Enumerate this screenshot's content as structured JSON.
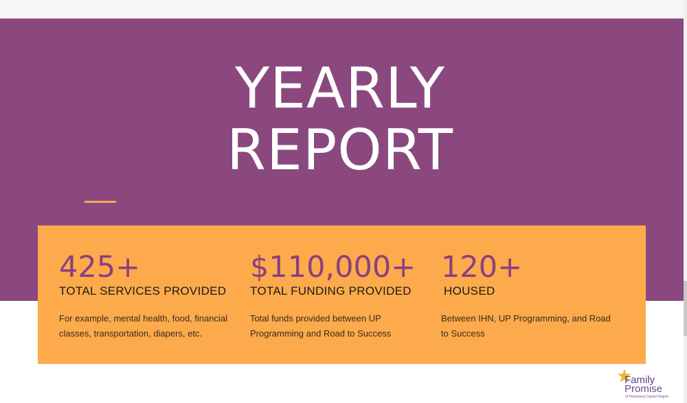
{
  "hero": {
    "title_line1": "YEARLY",
    "title_line2": "REPORT"
  },
  "stats": [
    {
      "number": "425+",
      "label": "TOTAL SERVICES PROVIDED",
      "description": "For example, mental health, food, financial classes, transportation, diapers, etc."
    },
    {
      "number": "$110,000+",
      "label": "TOTAL FUNDING PROVIDED",
      "description": "Total funds provided between UP Programming and Road to Success"
    },
    {
      "number": "120+",
      "label": "HOUSED",
      "description": "Between IHN, UP Programming, and Road to Success"
    }
  ],
  "logo": {
    "line1": "Family",
    "line2": "Promise",
    "tagline": "of Harrisburg Capital Region",
    "icon": "star-icon"
  },
  "colors": {
    "hero_background": "#8b487f",
    "card_background": "#fcaa4b",
    "stat_number": "#8b3f7f",
    "accent": "#f6a94a"
  }
}
